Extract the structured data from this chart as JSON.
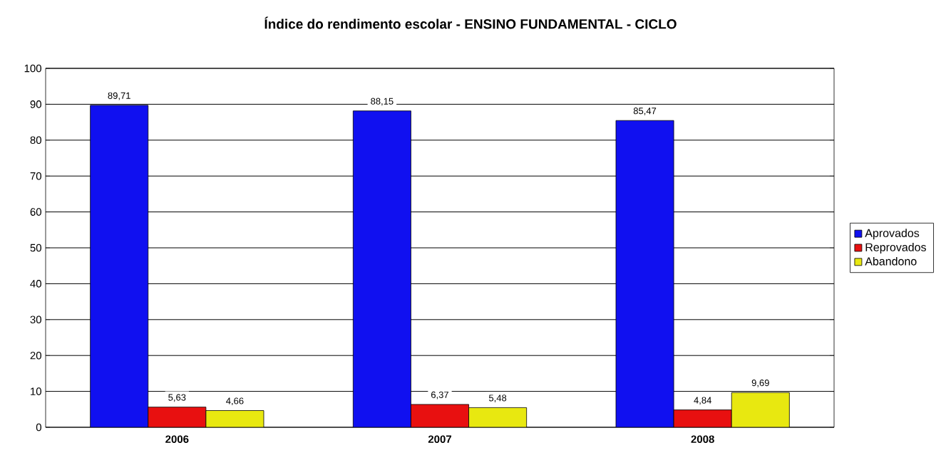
{
  "chart_data": {
    "type": "bar",
    "title": "Índice do rendimento escolar - ENSINO FUNDAMENTAL - CICLO",
    "categories": [
      "2006",
      "2007",
      "2008"
    ],
    "series": [
      {
        "name": "Aprovados",
        "color": "#1010f0",
        "values": [
          89.71,
          88.15,
          85.47
        ],
        "value_labels": [
          "89,71",
          "88,15",
          "85,47"
        ]
      },
      {
        "name": "Reprovados",
        "color": "#e81010",
        "values": [
          5.63,
          6.37,
          4.84
        ],
        "value_labels": [
          "5,63",
          "6,37",
          "4,84"
        ]
      },
      {
        "name": "Abandono",
        "color": "#e8e810",
        "values": [
          4.66,
          5.48,
          9.69
        ],
        "value_labels": [
          "4,66",
          "5,48",
          "9,69"
        ]
      }
    ],
    "ylim": [
      0,
      100
    ],
    "yticks": [
      0,
      10,
      20,
      30,
      40,
      50,
      60,
      70,
      80,
      90,
      100
    ],
    "grid": "y",
    "legend": "right"
  }
}
